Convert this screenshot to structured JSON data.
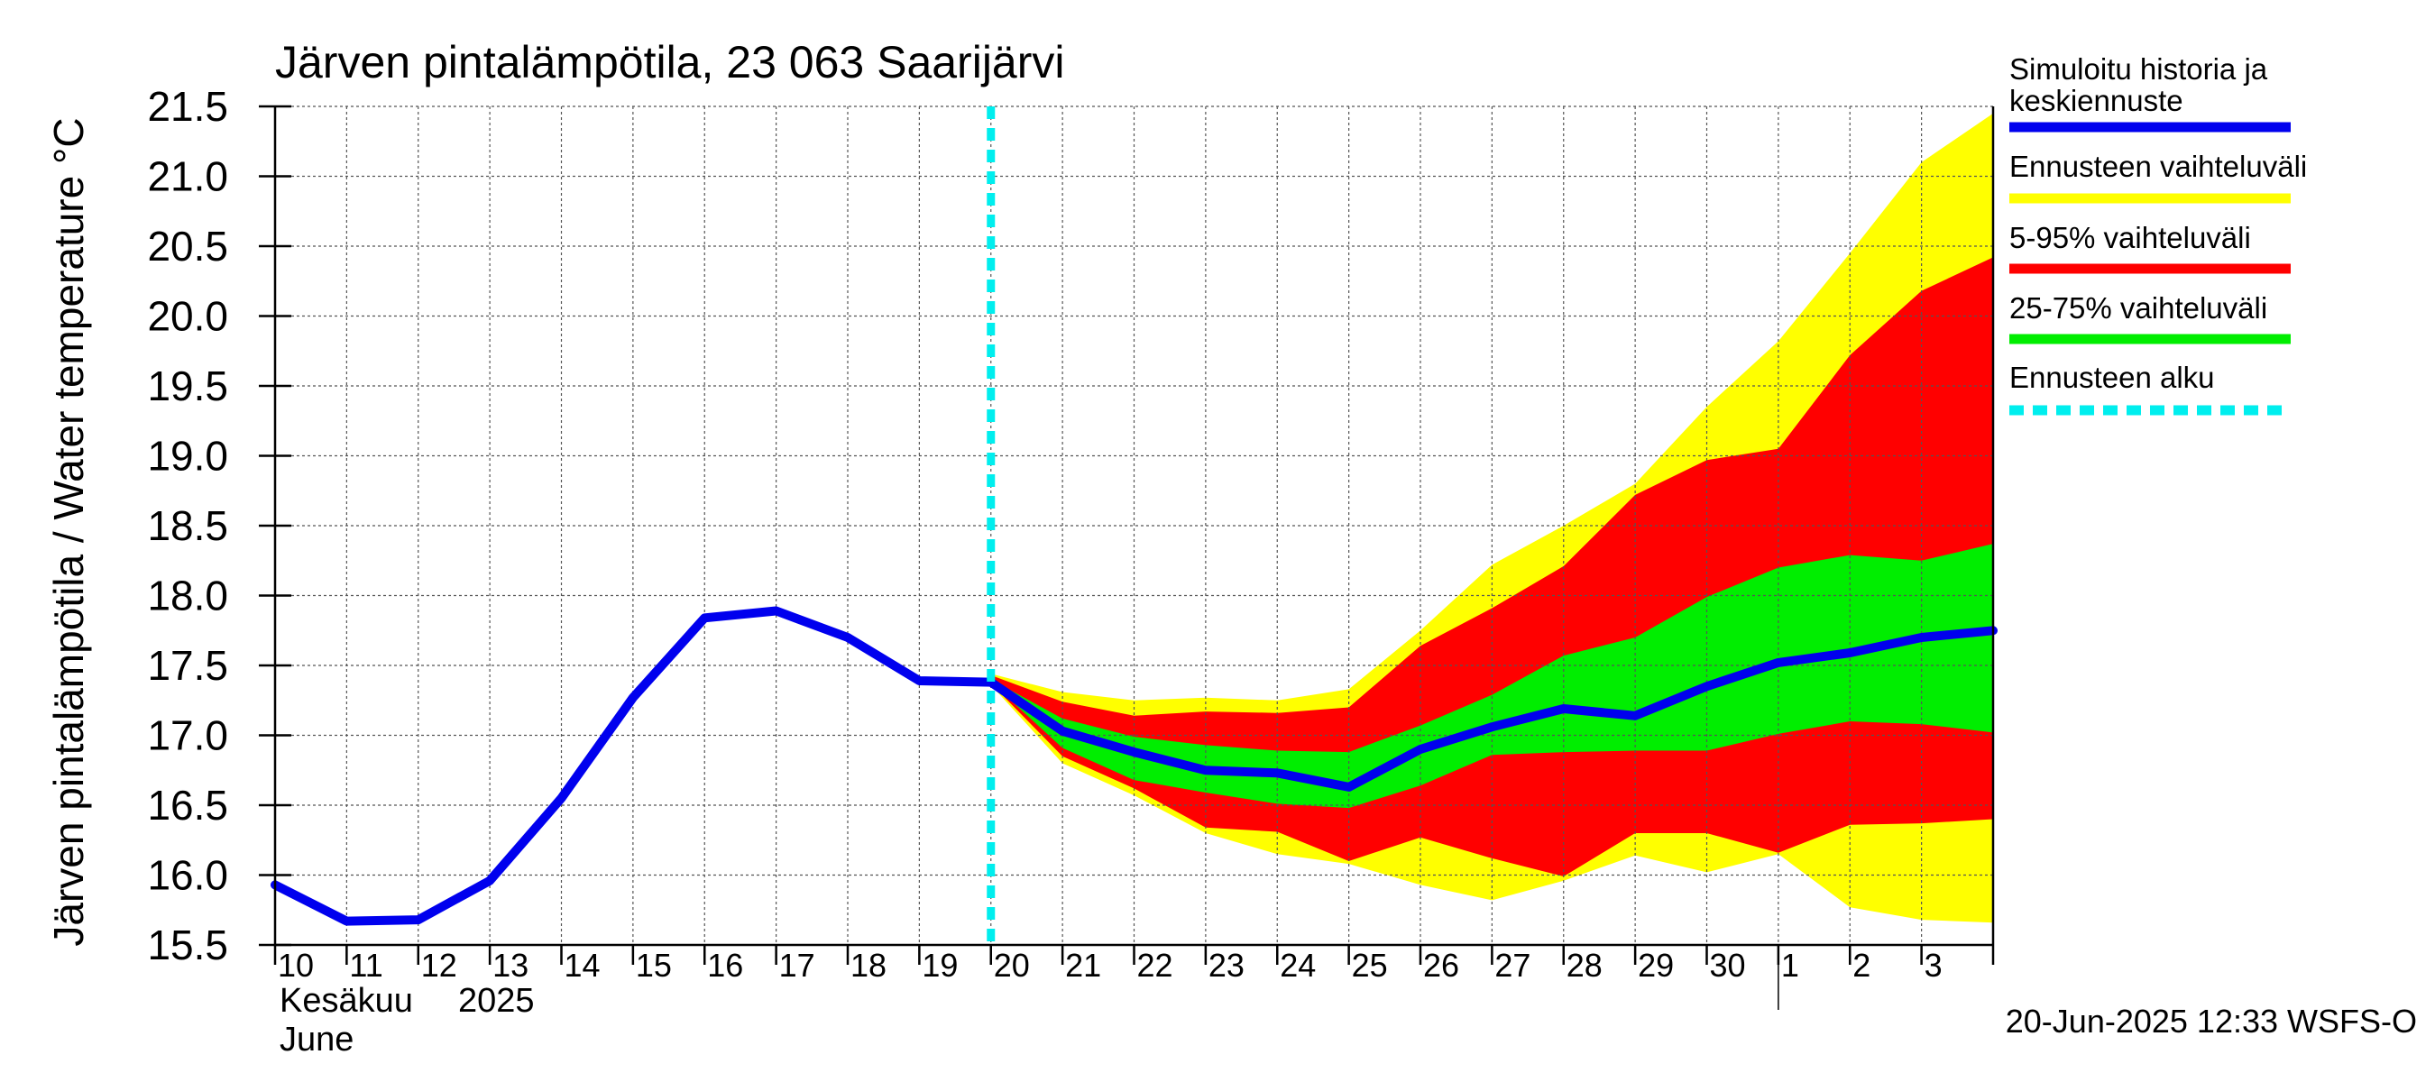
{
  "chart_data": {
    "type": "area",
    "title": "Järven pintalämpötila, 23 063 Saarijärvi",
    "ylabel": "Järven pintalämpötila / Water temperature °C",
    "ylim": [
      15.5,
      21.5
    ],
    "yticks": [
      "15.5",
      "16.0",
      "16.5",
      "17.0",
      "17.5",
      "18.0",
      "18.5",
      "19.0",
      "19.5",
      "20.0",
      "20.5",
      "21.0",
      "21.5"
    ],
    "x_range": [
      "2025-06-10",
      "2025-07-04"
    ],
    "x_tick_labels": [
      "10",
      "11",
      "12",
      "13",
      "14",
      "15",
      "16",
      "17",
      "18",
      "19",
      "20",
      "21",
      "22",
      "23",
      "24",
      "25",
      "26",
      "27",
      "28",
      "29",
      "30",
      "1",
      "2",
      "3"
    ],
    "month_label_fi": "Kesäkuu",
    "month_label_en": "June",
    "year_label": "2025",
    "forecast_start": "2025-06-20",
    "grid": true,
    "legend_placement": "right",
    "legend": [
      {
        "label": "Simuloitu historia ja keskiennuste",
        "color": "#0000ee",
        "style": "solid"
      },
      {
        "label": "Ennusteen vaihteluväli",
        "color": "#ffff00",
        "style": "solid"
      },
      {
        "label": "5-95% vaihteluväli",
        "color": "#ff0000",
        "style": "solid"
      },
      {
        "label": "25-75% vaihteluväli",
        "color": "#00ee00",
        "style": "solid"
      },
      {
        "label": "Ennusteen alku",
        "color": "#00eeee",
        "style": "dashed"
      }
    ],
    "series": [
      {
        "name": "Simuloitu historia ja keskiennuste",
        "color": "#0000ee",
        "x": [
          "2025-06-10",
          "2025-06-11",
          "2025-06-12",
          "2025-06-13",
          "2025-06-14",
          "2025-06-15",
          "2025-06-16",
          "2025-06-17",
          "2025-06-18",
          "2025-06-19",
          "2025-06-20",
          "2025-06-21",
          "2025-06-22",
          "2025-06-23",
          "2025-06-24",
          "2025-06-25",
          "2025-06-26",
          "2025-06-27",
          "2025-06-28",
          "2025-06-29",
          "2025-06-30",
          "2025-07-01",
          "2025-07-02",
          "2025-07-03",
          "2025-07-04"
        ],
        "y": [
          15.93,
          15.67,
          15.68,
          15.96,
          16.55,
          17.27,
          17.84,
          17.89,
          17.7,
          17.39,
          17.38,
          17.03,
          16.88,
          16.75,
          16.73,
          16.63,
          16.9,
          17.06,
          17.19,
          17.14,
          17.35,
          17.52,
          17.59,
          17.7,
          17.75
        ]
      },
      {
        "name": "Ennusteen vaihteluväli",
        "color": "#ffff00",
        "x": [
          "2025-06-20",
          "2025-06-21",
          "2025-06-22",
          "2025-06-23",
          "2025-06-24",
          "2025-06-25",
          "2025-06-26",
          "2025-06-27",
          "2025-06-28",
          "2025-06-29",
          "2025-06-30",
          "2025-07-01",
          "2025-07-02",
          "2025-07-03",
          "2025-07-04"
        ],
        "low": [
          17.36,
          16.8,
          16.57,
          16.3,
          16.15,
          16.08,
          15.93,
          15.82,
          15.96,
          16.14,
          16.02,
          16.15,
          15.77,
          15.68,
          15.66
        ],
        "high": [
          17.44,
          17.31,
          17.25,
          17.27,
          17.25,
          17.33,
          17.75,
          18.22,
          18.5,
          18.8,
          19.35,
          19.82,
          20.45,
          21.1,
          21.45
        ]
      },
      {
        "name": "5-95% vaihteluväli",
        "color": "#ff0000",
        "x": [
          "2025-06-20",
          "2025-06-21",
          "2025-06-22",
          "2025-06-23",
          "2025-06-24",
          "2025-06-25",
          "2025-06-26",
          "2025-06-27",
          "2025-06-28",
          "2025-06-29",
          "2025-06-30",
          "2025-07-01",
          "2025-07-02",
          "2025-07-03",
          "2025-07-04"
        ],
        "low": [
          17.37,
          16.85,
          16.62,
          16.34,
          16.31,
          16.1,
          16.27,
          16.12,
          15.99,
          16.3,
          16.3,
          16.16,
          16.36,
          16.37,
          16.4
        ],
        "high": [
          17.43,
          17.24,
          17.14,
          17.17,
          17.16,
          17.2,
          17.64,
          17.91,
          18.21,
          18.72,
          18.97,
          19.05,
          19.72,
          20.18,
          20.42
        ]
      },
      {
        "name": "25-75% vaihteluväli",
        "color": "#00ee00",
        "x": [
          "2025-06-20",
          "2025-06-21",
          "2025-06-22",
          "2025-06-23",
          "2025-06-24",
          "2025-06-25",
          "2025-06-26",
          "2025-06-27",
          "2025-06-28",
          "2025-06-29",
          "2025-06-30",
          "2025-07-01",
          "2025-07-02",
          "2025-07-03",
          "2025-07-04"
        ],
        "low": [
          17.38,
          16.91,
          16.68,
          16.59,
          16.51,
          16.48,
          16.64,
          16.86,
          16.88,
          16.89,
          16.89,
          17.01,
          17.1,
          17.08,
          17.02
        ],
        "high": [
          17.4,
          17.12,
          16.99,
          16.93,
          16.89,
          16.88,
          17.07,
          17.29,
          17.57,
          17.7,
          17.99,
          18.2,
          18.29,
          18.25,
          18.37
        ]
      }
    ]
  },
  "footer": {
    "timestamp": "20-Jun-2025 12:33 WSFS-O"
  }
}
